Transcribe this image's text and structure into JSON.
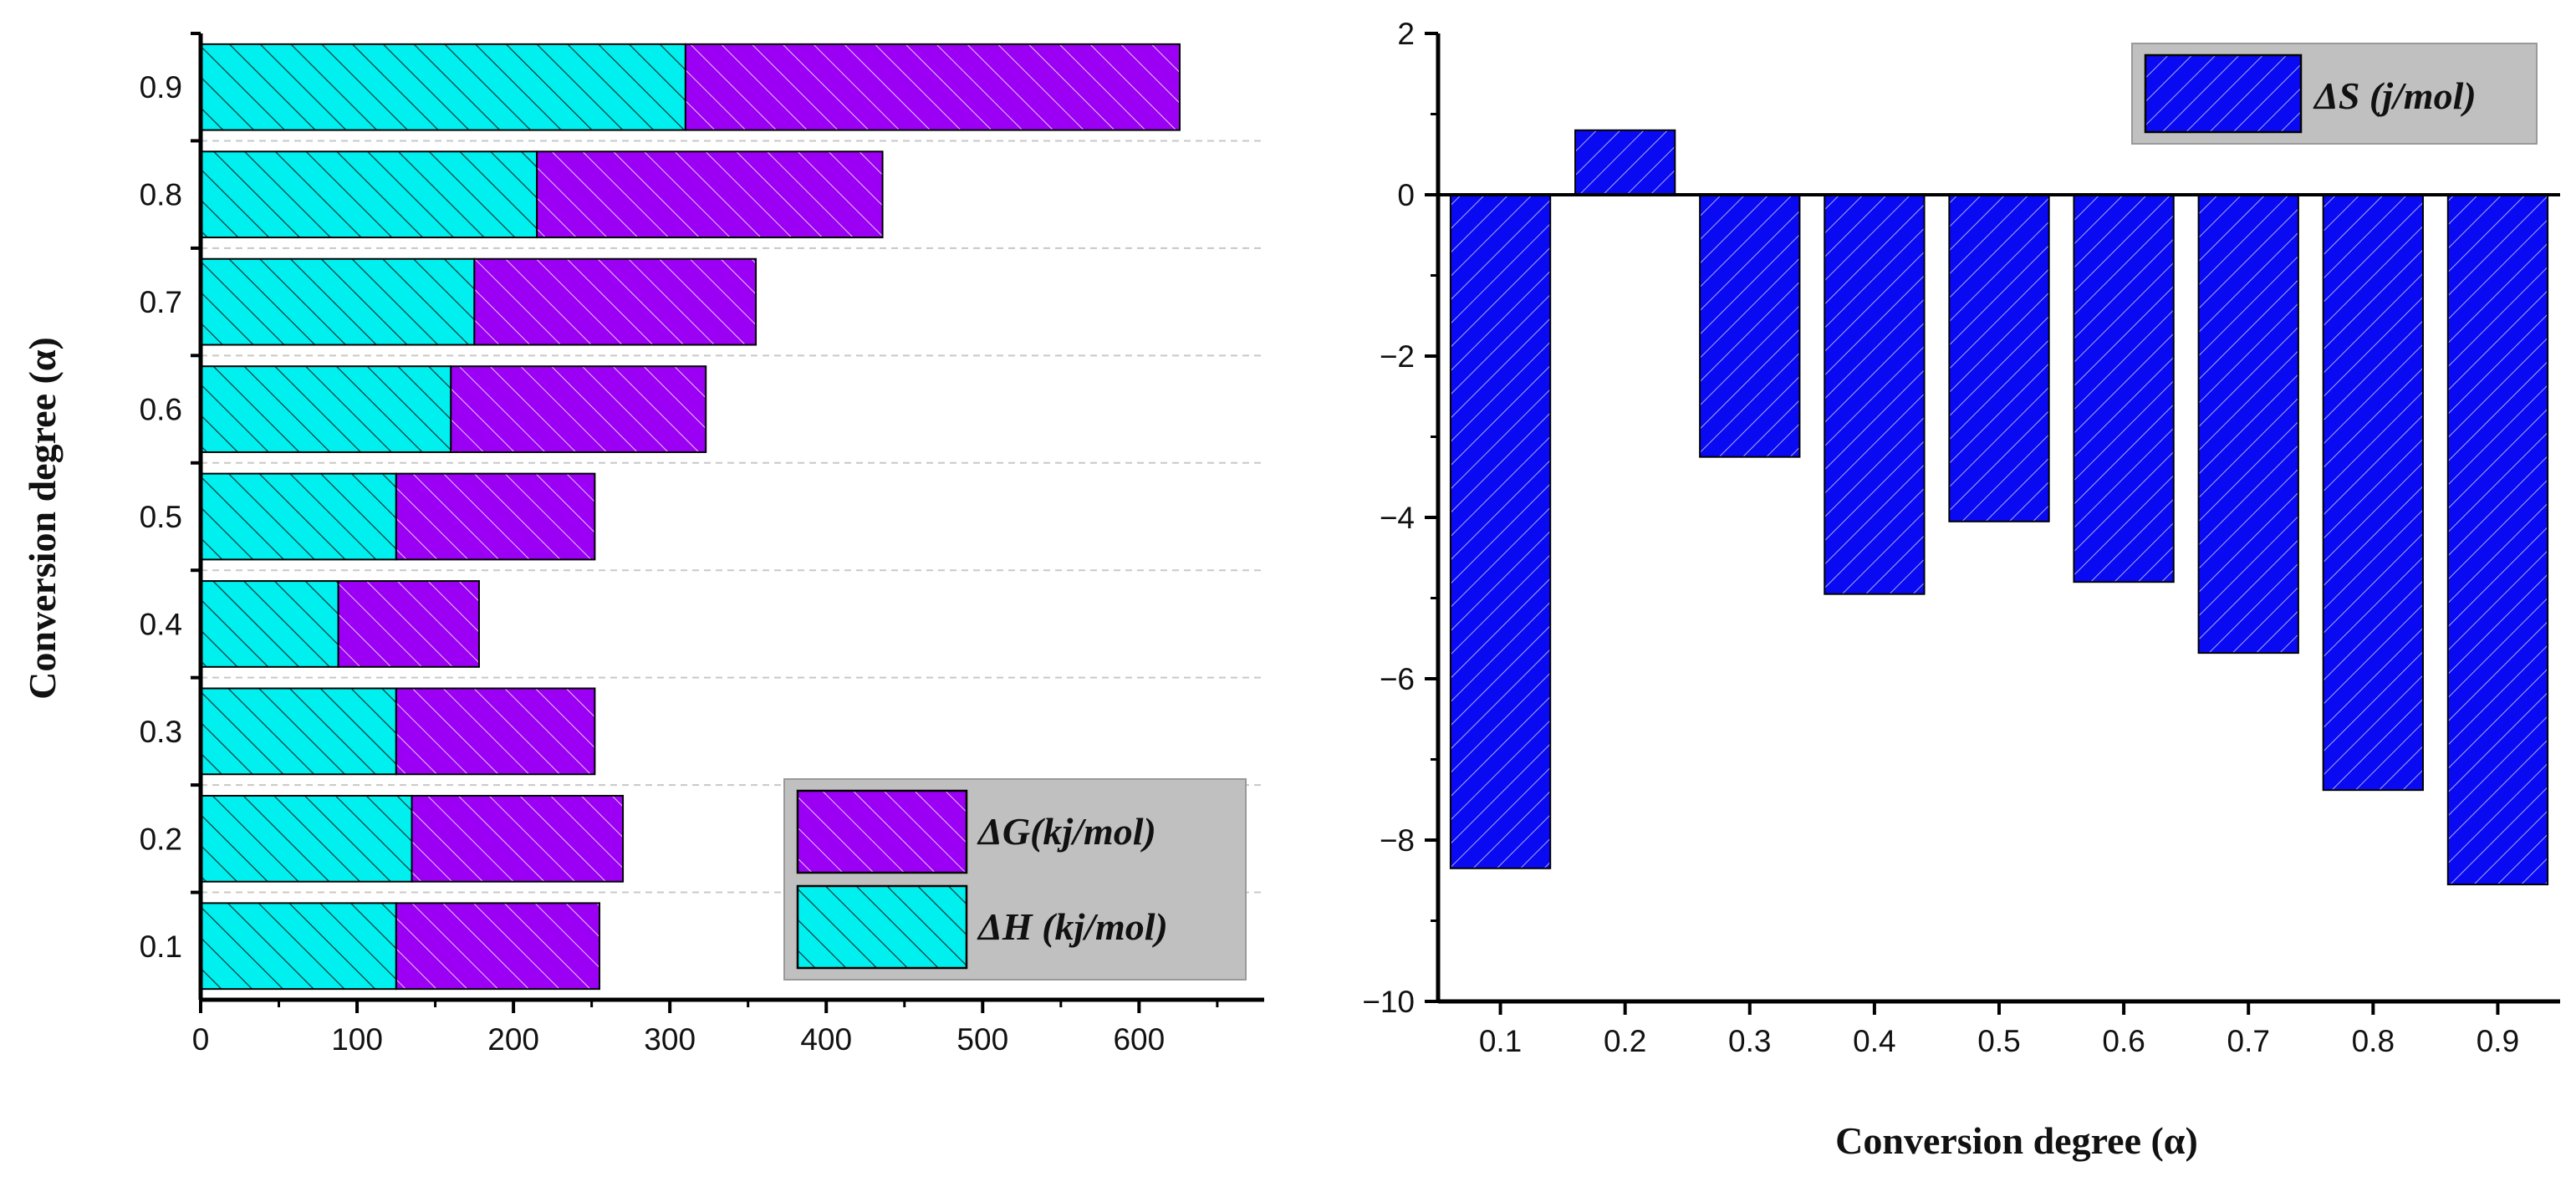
{
  "chart_data": [
    {
      "type": "bar",
      "orientation": "horizontal",
      "stacked": true,
      "title": "",
      "categories": [
        "0.1",
        "0.2",
        "0.3",
        "0.4",
        "0.5",
        "0.6",
        "0.7",
        "0.8",
        "0.9"
      ],
      "ylabel": "Conversion degree (α)",
      "xlabel": "",
      "xlim": [
        0,
        680
      ],
      "xticks": [
        "0",
        "100",
        "200",
        "300",
        "400",
        "500",
        "600"
      ],
      "grid": "horizontal dashed",
      "legend_position": "bottom-right",
      "series": [
        {
          "name": "ΔH (kj/mol)",
          "color": "#00f0f0",
          "hatch": "backslash-dark",
          "values": [
            125,
            135,
            125,
            88,
            125,
            160,
            175,
            215,
            310
          ]
        },
        {
          "name": "ΔG(kj/mol)",
          "color": "#9b00f5",
          "hatch": "backslash-light",
          "values": [
            130,
            135,
            127,
            90,
            127,
            163,
            180,
            221,
            316
          ]
        }
      ]
    },
    {
      "type": "bar",
      "orientation": "vertical",
      "title": "",
      "categories": [
        "0.1",
        "0.2",
        "0.3",
        "0.4",
        "0.5",
        "0.6",
        "0.7",
        "0.8",
        "0.9"
      ],
      "xlabel": "Conversion degree (α)",
      "ylabel": "",
      "ylim": [
        -10,
        2
      ],
      "yticks": [
        "2",
        "0",
        "−2",
        "−4",
        "−6",
        "−8",
        "−10"
      ],
      "legend_position": "top-right",
      "series": [
        {
          "name": "ΔS (j/mol)",
          "color": "#0a0af2",
          "hatch": "slash-light",
          "values": [
            -8.35,
            0.8,
            -3.25,
            -4.95,
            -4.05,
            -4.8,
            -5.68,
            -7.38,
            -8.55
          ]
        }
      ]
    }
  ]
}
